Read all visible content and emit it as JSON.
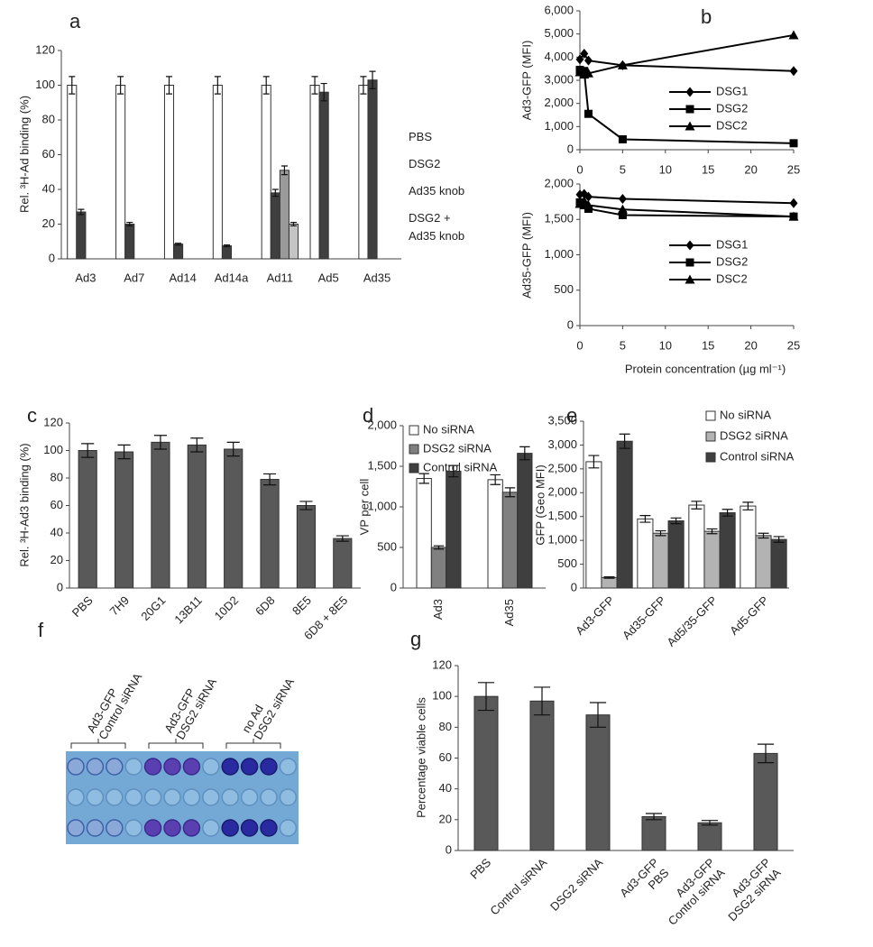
{
  "chart_data": [
    {
      "type": "bar",
      "panel": "a",
      "ylabel": "Rel. ³H-Ad binding (%)",
      "categories": [
        "Ad3",
        "Ad7",
        "Ad14",
        "Ad14a",
        "Ad11",
        "Ad5",
        "Ad35"
      ],
      "series": [
        {
          "name": "PBS",
          "color": "#ffffff",
          "values": [
            100,
            100,
            100,
            100,
            100,
            100,
            100
          ],
          "errors": [
            5,
            5,
            5,
            5,
            5,
            5,
            5
          ]
        },
        {
          "name": "DSG2",
          "color": "#3f3f3f",
          "values": [
            27,
            20,
            8.5,
            7.5,
            38,
            96,
            103
          ],
          "errors": [
            1.5,
            1,
            0.5,
            0.5,
            2,
            5,
            5
          ]
        },
        {
          "name": "Ad35 knob",
          "color": "#9a9a9a",
          "values": [
            null,
            null,
            null,
            null,
            51,
            null,
            null
          ],
          "errors": [
            null,
            null,
            null,
            null,
            2.5,
            null,
            null
          ]
        },
        {
          "name": "DSG2 + Ad35 knob",
          "color": "#c4c4c4",
          "values": [
            null,
            null,
            null,
            null,
            20,
            null,
            null
          ],
          "errors": [
            null,
            null,
            null,
            null,
            1,
            null,
            null
          ]
        }
      ],
      "ylim": [
        0,
        120
      ],
      "yticks": [
        0,
        20,
        40,
        60,
        80,
        100,
        120
      ]
    },
    {
      "type": "line",
      "panel": "b",
      "ylabel": "Ad3-GFP (MFI)",
      "x": [
        0,
        0.5,
        1,
        5,
        25
      ],
      "series": [
        {
          "name": "DSG1",
          "color": "#000000",
          "marker": "diamond",
          "values": [
            3900,
            4150,
            3850,
            3650,
            3400
          ]
        },
        {
          "name": "DSG2",
          "color": "#000000",
          "marker": "square",
          "values": [
            3450,
            3400,
            1550,
            450,
            280
          ]
        },
        {
          "name": "DSC2",
          "color": "#000000",
          "marker": "triangle",
          "values": [
            3350,
            3250,
            3300,
            3650,
            4950
          ]
        }
      ],
      "xlim": [
        0,
        25
      ],
      "xticks": [
        0,
        5,
        10,
        15,
        20,
        25
      ],
      "ylim": [
        0,
        6000
      ],
      "yticks": [
        0,
        {
          "value": 1000,
          "label": "1,000"
        },
        {
          "value": 2000,
          "label": "2,000"
        },
        {
          "value": 3000,
          "label": "3,000"
        },
        {
          "value": 4000,
          "label": "4,000"
        },
        {
          "value": 5000,
          "label": "5,000"
        },
        {
          "value": 6000,
          "label": "6,000"
        }
      ]
    },
    {
      "type": "line",
      "ylabel": "Ad35-GFP (MFI)",
      "xlabel": "Protein concentration (µg ml⁻¹)",
      "x": [
        0,
        0.5,
        1,
        5,
        25
      ],
      "series": [
        {
          "name": "DSG1",
          "color": "#000000",
          "marker": "diamond",
          "values": [
            1850,
            1860,
            1820,
            1790,
            1730
          ]
        },
        {
          "name": "DSG2",
          "color": "#000000",
          "marker": "square",
          "values": [
            1740,
            1700,
            1650,
            1560,
            1540
          ]
        },
        {
          "name": "DSC2",
          "color": "#000000",
          "marker": "triangle",
          "values": [
            1720,
            1760,
            1700,
            1640,
            1540
          ]
        }
      ],
      "xlim": [
        0,
        25
      ],
      "xticks": [
        0,
        5,
        10,
        15,
        20,
        25
      ],
      "ylim": [
        0,
        2000
      ],
      "yticks": [
        0,
        500,
        {
          "value": 1000,
          "label": "1,000"
        },
        {
          "value": 1500,
          "label": "1,500"
        },
        {
          "value": 2000,
          "label": "2,000"
        }
      ]
    },
    {
      "type": "bar",
      "panel": "c",
      "ylabel": "Rel. ³H-Ad3 binding (%)",
      "categories": [
        "PBS",
        "7H9",
        "20G1",
        "13B11",
        "10D2",
        "6D8",
        "8E5",
        "6D8 + 8E5"
      ],
      "values": [
        100,
        99,
        106,
        104,
        101,
        79,
        60,
        36
      ],
      "errors": [
        5,
        5,
        5,
        5,
        5,
        4,
        3,
        2
      ],
      "color": "#595959",
      "ylim": [
        0,
        120
      ],
      "yticks": [
        0,
        20,
        40,
        60,
        80,
        100,
        120
      ]
    },
    {
      "type": "bar",
      "panel": "d",
      "ylabel": "VP per cell",
      "categories": [
        "Ad3",
        "Ad35"
      ],
      "series": [
        {
          "name": "No siRNA",
          "color": "#ffffff",
          "values": [
            1350,
            1335
          ],
          "errors": [
            60,
            60
          ]
        },
        {
          "name": "DSG2 siRNA",
          "color": "#808080",
          "values": [
            500,
            1180
          ],
          "errors": [
            20,
            55
          ]
        },
        {
          "name": "Control siRNA",
          "color": "#3f3f3f",
          "values": [
            1440,
            1660
          ],
          "errors": [
            70,
            80
          ]
        }
      ],
      "ylim": [
        0,
        2000
      ],
      "yticks": [
        0,
        500,
        {
          "value": 1000,
          "label": "1,000"
        },
        {
          "value": 1500,
          "label": "1,500"
        },
        {
          "value": 2000,
          "label": "2,000"
        }
      ]
    },
    {
      "type": "bar",
      "panel": "e",
      "ylabel": "GFP (Geo MFI)",
      "categories": [
        "Ad3-GFP",
        "Ad35-GFP",
        "Ad5/35-GFP",
        "Ad5-GFP"
      ],
      "series": [
        {
          "name": "No siRNA",
          "color": "#ffffff",
          "values": [
            2650,
            1450,
            1740,
            1720
          ],
          "errors": [
            130,
            70,
            80,
            80
          ]
        },
        {
          "name": "DSG2 siRNA",
          "color": "#b3b3b3",
          "values": [
            220,
            1150,
            1190,
            1100
          ],
          "errors": [
            15,
            50,
            50,
            50
          ]
        },
        {
          "name": "Control siRNA",
          "color": "#3f3f3f",
          "values": [
            3080,
            1410,
            1580,
            1020
          ],
          "errors": [
            150,
            60,
            70,
            60
          ]
        }
      ],
      "ylim": [
        0,
        3500
      ],
      "yticks": [
        0,
        500,
        {
          "value": 1000,
          "label": "1,000"
        },
        {
          "value": 1500,
          "label": "1,500"
        },
        {
          "value": 2000,
          "label": "2,000"
        },
        {
          "value": 2500,
          "label": "2,500"
        },
        {
          "value": 3000,
          "label": "3,000"
        },
        {
          "value": 3500,
          "label": "3,500"
        }
      ]
    },
    {
      "type": "bar",
      "panel": "g",
      "ylabel": "Percentage viable cells",
      "categories": [
        [
          "PBS"
        ],
        [
          "Control siRNA"
        ],
        [
          "DSG2 siRNA"
        ],
        [
          "Ad3-GFP",
          "PBS"
        ],
        [
          "Ad3-GFP",
          "Control siRNA"
        ],
        [
          "Ad3-GFP",
          "DSG2 siRNA"
        ]
      ],
      "values": [
        100,
        97,
        88,
        22,
        18,
        63
      ],
      "errors": [
        9,
        9,
        8,
        2,
        1.5,
        6
      ],
      "color": "#595959",
      "ylim": [
        0,
        120
      ],
      "yticks": [
        0,
        20,
        40,
        60,
        80,
        100,
        120
      ]
    }
  ],
  "image_panel": {
    "panel": "f",
    "groups": [
      [
        "Ad3-GFP",
        "Control siRNA"
      ],
      [
        "Ad3-GFP",
        "DSG2 siRNA"
      ],
      [
        "no Ad",
        "DSG2 siRNA"
      ]
    ]
  }
}
